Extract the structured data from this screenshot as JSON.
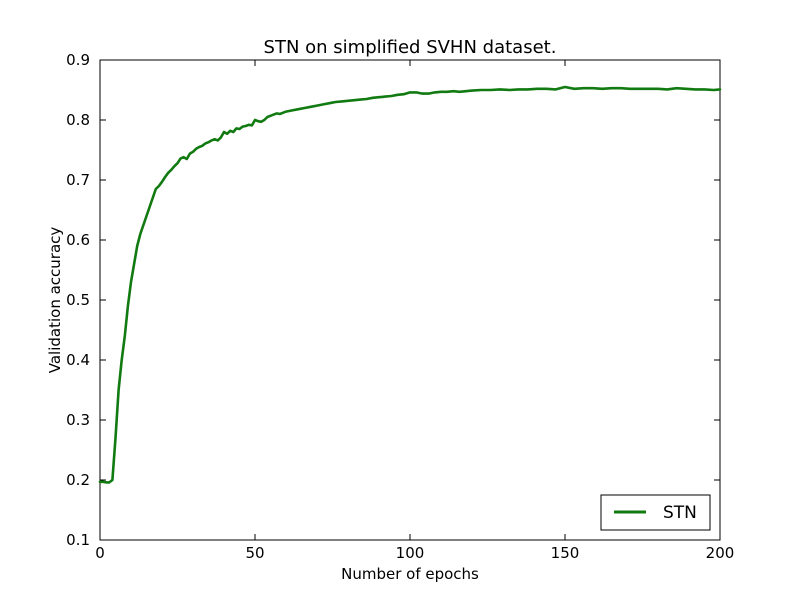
{
  "chart_data": {
    "type": "line",
    "title": "STN on simplified SVHN dataset.",
    "xlabel": "Number of epochs",
    "ylabel": "Validation accuracy",
    "xlim": [
      0,
      200
    ],
    "ylim": [
      0.1,
      0.9
    ],
    "x_ticks": [
      0,
      50,
      100,
      150,
      200
    ],
    "x_tick_labels": [
      "0",
      "50",
      "100",
      "150",
      "200"
    ],
    "y_ticks": [
      0.1,
      0.2,
      0.3,
      0.4,
      0.5,
      0.6,
      0.7,
      0.8,
      0.9
    ],
    "y_tick_labels": [
      "0.1",
      "0.2",
      "0.3",
      "0.4",
      "0.5",
      "0.6",
      "0.7",
      "0.8",
      "0.9"
    ],
    "grid": false,
    "legend_position": "lower-right",
    "series": [
      {
        "name": "STN",
        "color": "#117a11",
        "x": [
          0,
          1,
          2,
          3,
          4,
          5,
          6,
          7,
          8,
          9,
          10,
          11,
          12,
          13,
          14,
          15,
          16,
          17,
          18,
          19,
          20,
          21,
          22,
          23,
          24,
          25,
          26,
          27,
          28,
          29,
          30,
          31,
          32,
          33,
          34,
          35,
          36,
          37,
          38,
          39,
          40,
          41,
          42,
          43,
          44,
          45,
          46,
          47,
          48,
          49,
          50,
          51,
          52,
          53,
          54,
          55,
          56,
          57,
          58,
          59,
          60,
          62,
          64,
          66,
          68,
          70,
          72,
          74,
          76,
          78,
          80,
          82,
          84,
          86,
          88,
          90,
          92,
          94,
          96,
          98,
          100,
          102,
          104,
          106,
          108,
          110,
          112,
          114,
          116,
          118,
          120,
          123,
          126,
          129,
          132,
          135,
          138,
          141,
          144,
          147,
          150,
          153,
          156,
          159,
          162,
          165,
          168,
          171,
          174,
          177,
          180,
          183,
          186,
          189,
          192,
          195,
          198,
          200
        ],
        "y": [
          0.197,
          0.197,
          0.196,
          0.196,
          0.2,
          0.27,
          0.35,
          0.4,
          0.44,
          0.49,
          0.53,
          0.56,
          0.59,
          0.61,
          0.625,
          0.64,
          0.655,
          0.67,
          0.685,
          0.69,
          0.697,
          0.705,
          0.712,
          0.717,
          0.723,
          0.728,
          0.736,
          0.738,
          0.735,
          0.744,
          0.747,
          0.752,
          0.755,
          0.757,
          0.761,
          0.763,
          0.766,
          0.768,
          0.766,
          0.771,
          0.78,
          0.777,
          0.782,
          0.78,
          0.786,
          0.785,
          0.789,
          0.79,
          0.792,
          0.791,
          0.8,
          0.798,
          0.797,
          0.8,
          0.805,
          0.807,
          0.809,
          0.811,
          0.81,
          0.812,
          0.814,
          0.816,
          0.818,
          0.82,
          0.822,
          0.824,
          0.826,
          0.828,
          0.83,
          0.831,
          0.832,
          0.833,
          0.834,
          0.835,
          0.837,
          0.838,
          0.839,
          0.84,
          0.842,
          0.843,
          0.846,
          0.846,
          0.844,
          0.844,
          0.846,
          0.847,
          0.847,
          0.848,
          0.847,
          0.848,
          0.849,
          0.85,
          0.85,
          0.851,
          0.85,
          0.851,
          0.851,
          0.852,
          0.852,
          0.851,
          0.855,
          0.852,
          0.853,
          0.853,
          0.852,
          0.853,
          0.853,
          0.852,
          0.852,
          0.852,
          0.852,
          0.851,
          0.853,
          0.852,
          0.851,
          0.851,
          0.85,
          0.851
        ]
      }
    ]
  }
}
